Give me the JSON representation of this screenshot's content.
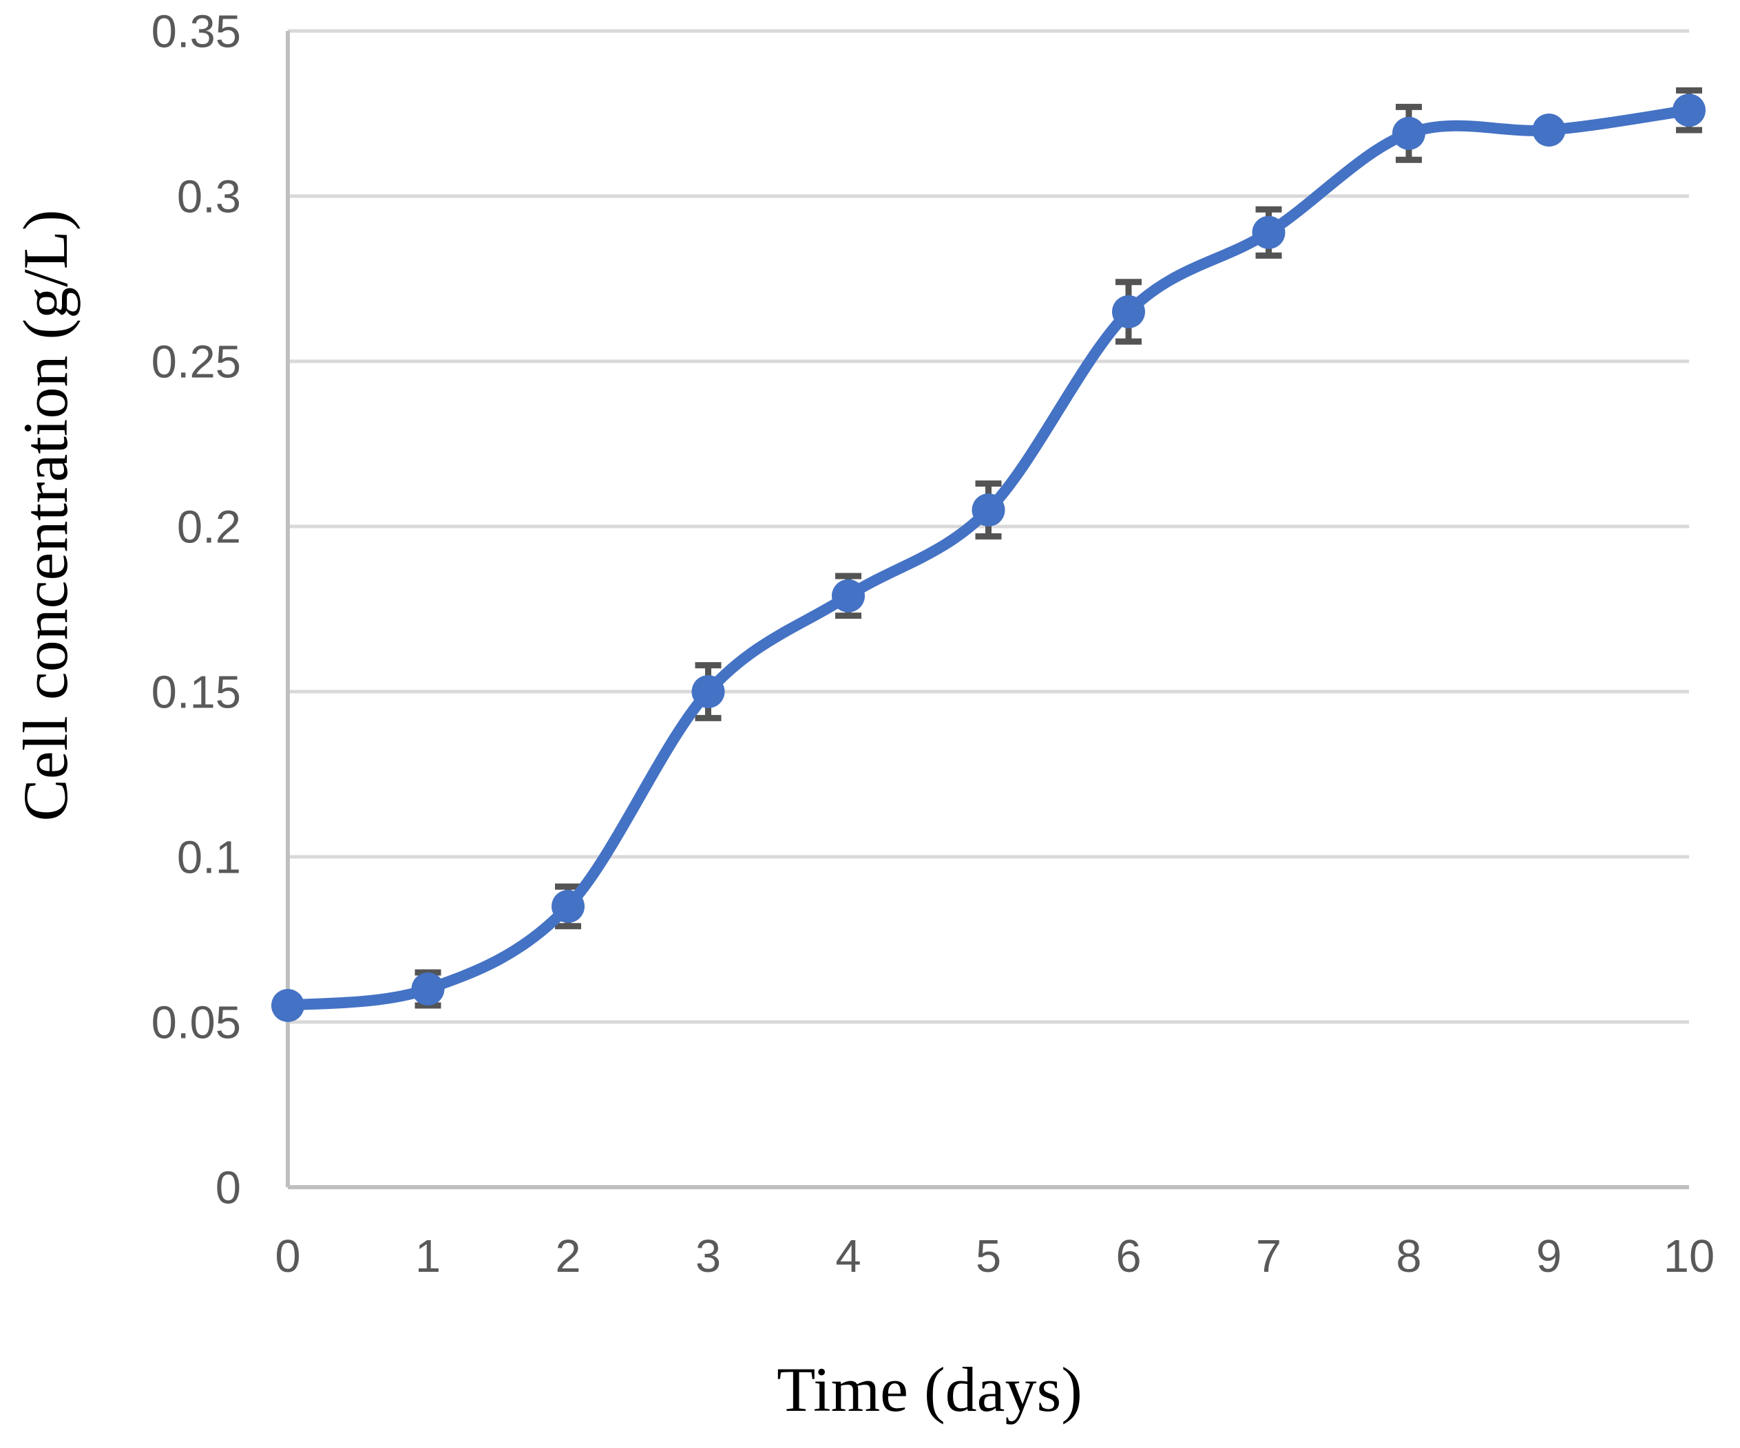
{
  "chart_data": {
    "type": "line",
    "title": "",
    "xlabel": "Time (days)",
    "ylabel": "Cell concentration (g/L)",
    "x": [
      0,
      1,
      2,
      3,
      4,
      5,
      6,
      7,
      8,
      9,
      10
    ],
    "xtick_labels": [
      "0",
      "1",
      "2",
      "3",
      "4",
      "5",
      "6",
      "7",
      "8",
      "9",
      "10"
    ],
    "yticks": [
      0,
      0.05,
      0.1,
      0.15,
      0.2,
      0.25,
      0.3,
      0.35
    ],
    "ytick_labels": [
      "0",
      "0.05",
      "0.1",
      "0.15",
      "0.2",
      "0.25",
      "0.3",
      "0.35"
    ],
    "xlim": [
      0,
      10
    ],
    "ylim": [
      0,
      0.35
    ],
    "grid": "horizontal-only",
    "legend": "none",
    "series": [
      {
        "name": "Cell concentration (g/L)",
        "color": "#4472C4",
        "marker": "circle",
        "smooth": true,
        "values": [
          0.055,
          0.06,
          0.085,
          0.15,
          0.179,
          0.205,
          0.265,
          0.289,
          0.319,
          0.32,
          0.326
        ],
        "error_bars": [
          0,
          0.005,
          0.006,
          0.008,
          0.006,
          0.008,
          0.009,
          0.007,
          0.008,
          0,
          0.006
        ]
      }
    ]
  },
  "style": {
    "background": "#FFFFFF",
    "series_color": "#4472C4",
    "gridline_color": "#D9D9D9",
    "axis_line_color": "#BFBFBF",
    "tick_label_color": "#595959",
    "error_bar_color": "#545454",
    "axis_title_color": "#000000"
  }
}
